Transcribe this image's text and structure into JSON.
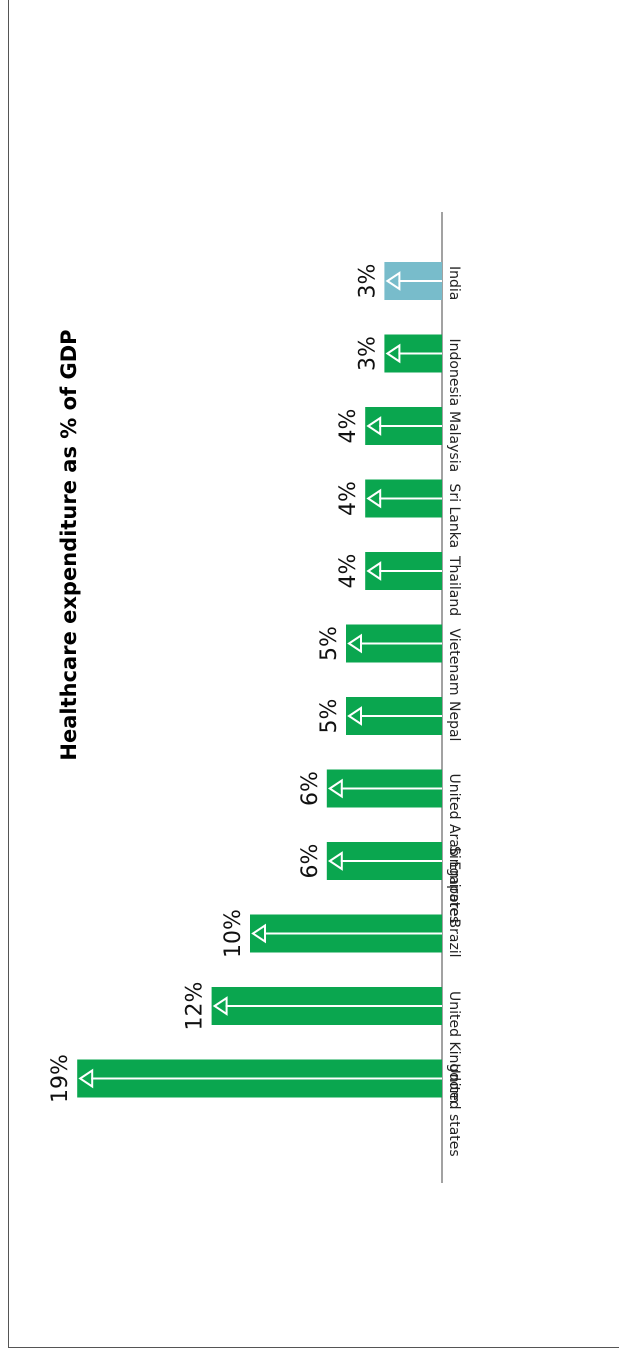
{
  "chart_data": {
    "type": "bar",
    "title": "Healthcare expenditure as % of GDP",
    "categories": [
      "India",
      "Indonesia",
      "Malaysia",
      "Sri Lanka",
      "Thailand",
      "Vietenam",
      "Nepal",
      "United Arab Emirates",
      "Singapore",
      "Brazil",
      "United Kingdom",
      "United states"
    ],
    "values": [
      3,
      3,
      4,
      4,
      4,
      5,
      5,
      6,
      6,
      10,
      12,
      19
    ],
    "value_labels": [
      "3%",
      "3%",
      "4%",
      "4%",
      "4%",
      "5%",
      "5%",
      "6%",
      "6%",
      "10%",
      "12%",
      "19%"
    ],
    "highlight_category": "India",
    "colors": {
      "bar": "#0aa64f",
      "highlight": "#78bccb",
      "arrow": "#ffffff",
      "axis": "#444444"
    },
    "orientation": "rotated-90",
    "grid": false,
    "xlabel": "",
    "ylabel": ""
  }
}
